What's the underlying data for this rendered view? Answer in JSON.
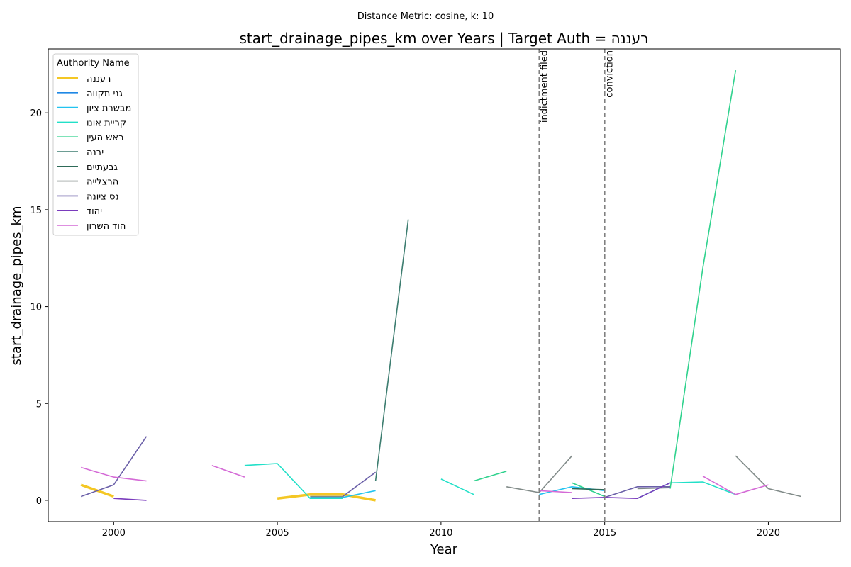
{
  "suptitle": "Distance Metric: cosine, k: 10",
  "chart_data": {
    "type": "line",
    "title": "start_drainage_pipes_km over Years | Target Auth = רעננה",
    "xlabel": "Year",
    "ylabel": "start_drainage_pipes_km",
    "xlim": [
      1998,
      2022.2
    ],
    "ylim": [
      -1.1,
      23.3
    ],
    "xticks": [
      2000,
      2005,
      2010,
      2015,
      2020
    ],
    "yticks": [
      0,
      5,
      10,
      15,
      20
    ],
    "grid": false,
    "legend": {
      "title": "Authority Name",
      "placement": "top-left"
    },
    "vlines": [
      {
        "x": 2013,
        "label": "indictment filed"
      },
      {
        "x": 2015,
        "label": "conviction"
      }
    ],
    "series": [
      {
        "name": "רעננה",
        "color": "#f4c724",
        "width": 3.5,
        "segments": [
          [
            [
              1999,
              0.8
            ],
            [
              2000,
              0.2
            ]
          ],
          [
            [
              2005,
              0.1
            ],
            [
              2006,
              0.3
            ],
            [
              2007,
              0.3
            ],
            [
              2008,
              0.0
            ]
          ]
        ]
      },
      {
        "name": "גני תקווה",
        "color": "#1f88e5",
        "width": 1.6,
        "segments": []
      },
      {
        "name": "מבשרת ציון",
        "color": "#22c3f0",
        "width": 1.6,
        "segments": [
          [
            [
              2006,
              0.15
            ],
            [
              2007,
              0.15
            ],
            [
              2008,
              0.5
            ]
          ],
          [
            [
              2013,
              0.3
            ],
            [
              2014,
              0.7
            ],
            [
              2015,
              0.5
            ]
          ]
        ]
      },
      {
        "name": "קריית אונו",
        "color": "#22e0c8",
        "width": 1.6,
        "segments": [
          [
            [
              2004,
              1.8
            ],
            [
              2005,
              1.9
            ],
            [
              2006,
              0.1
            ],
            [
              2007,
              0.1
            ]
          ],
          [
            [
              2010,
              1.1
            ],
            [
              2011,
              0.3
            ]
          ],
          [
            [
              2016,
              0.1
            ],
            [
              2017,
              0.9
            ],
            [
              2018,
              0.95
            ],
            [
              2019,
              0.3
            ]
          ]
        ]
      },
      {
        "name": "ראש העין",
        "color": "#30d28e",
        "width": 1.6,
        "segments": [
          [
            [
              2011,
              1.0
            ],
            [
              2012,
              1.5
            ]
          ],
          [
            [
              2014,
              0.9
            ],
            [
              2015,
              0.2
            ]
          ],
          [
            [
              2017,
              0.6
            ],
            [
              2018,
              12.0
            ],
            [
              2019,
              22.2
            ]
          ]
        ]
      },
      {
        "name": "יבנה",
        "color": "#3d7d70",
        "width": 1.6,
        "segments": [
          [
            [
              2008,
              1.0
            ],
            [
              2009,
              14.5
            ]
          ]
        ]
      },
      {
        "name": "גבעתיים",
        "color": "#2e6a58",
        "width": 1.6,
        "segments": [
          [
            [
              2014,
              0.6
            ],
            [
              2015,
              0.55
            ]
          ]
        ]
      },
      {
        "name": "הרצלייה",
        "color": "#808a88",
        "width": 1.6,
        "segments": [
          [
            [
              2006,
              0.2
            ],
            [
              2007,
              0.2
            ]
          ],
          [
            [
              2012,
              0.7
            ],
            [
              2013,
              0.4
            ],
            [
              2014,
              2.3
            ]
          ],
          [
            [
              2016,
              0.6
            ],
            [
              2017,
              0.65
            ]
          ],
          [
            [
              2019,
              2.3
            ],
            [
              2020,
              0.6
            ],
            [
              2021,
              0.2
            ]
          ]
        ]
      },
      {
        "name": "נס ציונה",
        "color": "#6a5fa8",
        "width": 1.6,
        "segments": [
          [
            [
              1999,
              0.2
            ],
            [
              2000,
              0.8
            ],
            [
              2001,
              3.3
            ]
          ],
          [
            [
              2007,
              0.2
            ],
            [
              2008,
              1.45
            ]
          ],
          [
            [
              2015,
              0.15
            ],
            [
              2016,
              0.7
            ],
            [
              2017,
              0.7
            ]
          ]
        ]
      },
      {
        "name": "יהוד",
        "color": "#7a3bbd",
        "width": 1.6,
        "segments": [
          [
            [
              2000,
              0.1
            ],
            [
              2001,
              0.0
            ]
          ],
          [
            [
              2014,
              0.1
            ],
            [
              2015,
              0.15
            ],
            [
              2016,
              0.1
            ],
            [
              2017,
              0.9
            ]
          ]
        ]
      },
      {
        "name": "הוד השרון",
        "color": "#d46ad6",
        "width": 1.6,
        "segments": [
          [
            [
              1999,
              1.7
            ],
            [
              2000,
              1.2
            ],
            [
              2001,
              1.0
            ]
          ],
          [
            [
              2003,
              1.8
            ],
            [
              2004,
              1.2
            ]
          ],
          [
            [
              2013,
              0.5
            ],
            [
              2014,
              0.4
            ]
          ],
          [
            [
              2018,
              1.25
            ],
            [
              2019,
              0.3
            ],
            [
              2020,
              0.8
            ]
          ]
        ]
      }
    ]
  }
}
